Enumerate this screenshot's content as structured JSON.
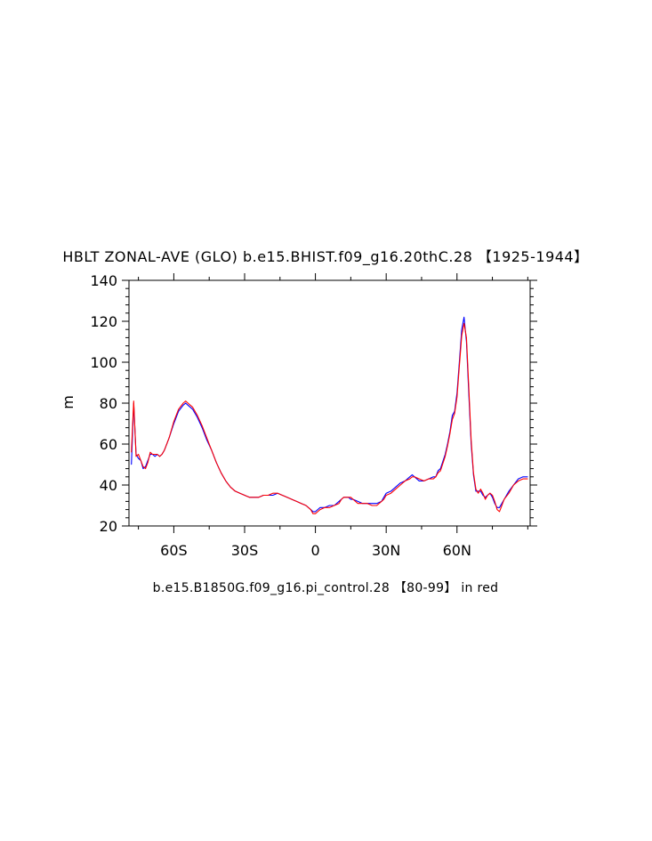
{
  "chart_data": {
    "type": "line",
    "title": "HBLT ZONAL-AVE (GLO) b.e15.BHIST.f09_g16.20thC.28 【1925-1944】",
    "subtitle": "b.e15.B1850G.f09_g16.pi_control.28 【80-99】 in red",
    "xlabel": "",
    "ylabel": "m",
    "xlim": [
      -79,
      91
    ],
    "ylim": [
      20,
      140
    ],
    "x_ticks": [
      {
        "value": -60,
        "label": "60S"
      },
      {
        "value": -30,
        "label": "30S"
      },
      {
        "value": 0,
        "label": "0"
      },
      {
        "value": 30,
        "label": "30N"
      },
      {
        "value": 60,
        "label": "60N"
      }
    ],
    "y_ticks": [
      {
        "value": 20,
        "label": "20"
      },
      {
        "value": 40,
        "label": "40"
      },
      {
        "value": 60,
        "label": "60"
      },
      {
        "value": 80,
        "label": "80"
      },
      {
        "value": 100,
        "label": "100"
      },
      {
        "value": 120,
        "label": "120"
      },
      {
        "value": 140,
        "label": "140"
      }
    ],
    "grid": false,
    "legend": "none",
    "series": [
      {
        "color": "#0000ff",
        "points": [
          [
            -78,
            50
          ],
          [
            -77,
            80
          ],
          [
            -76,
            55
          ],
          [
            -75,
            53
          ],
          [
            -74,
            52
          ],
          [
            -73,
            48
          ],
          [
            -72,
            49
          ],
          [
            -71,
            52
          ],
          [
            -70,
            55
          ],
          [
            -69,
            55
          ],
          [
            -68,
            54
          ],
          [
            -67,
            55
          ],
          [
            -66,
            54
          ],
          [
            -65,
            55
          ],
          [
            -64,
            57
          ],
          [
            -62,
            63
          ],
          [
            -60,
            70
          ],
          [
            -58,
            76
          ],
          [
            -56,
            79
          ],
          [
            -55,
            80
          ],
          [
            -54,
            79
          ],
          [
            -52,
            77
          ],
          [
            -50,
            73
          ],
          [
            -48,
            68
          ],
          [
            -46,
            62
          ],
          [
            -44,
            57
          ],
          [
            -42,
            51
          ],
          [
            -40,
            46
          ],
          [
            -38,
            42
          ],
          [
            -36,
            39
          ],
          [
            -34,
            37
          ],
          [
            -32,
            36
          ],
          [
            -30,
            35
          ],
          [
            -28,
            34
          ],
          [
            -26,
            34
          ],
          [
            -24,
            34
          ],
          [
            -22,
            35
          ],
          [
            -20,
            35
          ],
          [
            -18,
            35
          ],
          [
            -16,
            36
          ],
          [
            -14,
            35
          ],
          [
            -12,
            34
          ],
          [
            -10,
            33
          ],
          [
            -8,
            32
          ],
          [
            -6,
            31
          ],
          [
            -4,
            30
          ],
          [
            -2,
            28
          ],
          [
            -1,
            27
          ],
          [
            0,
            27
          ],
          [
            1,
            28
          ],
          [
            2,
            29
          ],
          [
            4,
            29
          ],
          [
            6,
            30
          ],
          [
            8,
            30
          ],
          [
            10,
            32
          ],
          [
            11,
            33
          ],
          [
            12,
            34
          ],
          [
            14,
            34
          ],
          [
            15,
            33
          ],
          [
            16,
            33
          ],
          [
            18,
            32
          ],
          [
            20,
            31
          ],
          [
            22,
            31
          ],
          [
            24,
            31
          ],
          [
            26,
            31
          ],
          [
            28,
            32
          ],
          [
            29,
            34
          ],
          [
            30,
            36
          ],
          [
            32,
            37
          ],
          [
            34,
            39
          ],
          [
            36,
            41
          ],
          [
            38,
            42
          ],
          [
            40,
            44
          ],
          [
            41,
            45
          ],
          [
            42,
            44
          ],
          [
            44,
            42
          ],
          [
            46,
            42
          ],
          [
            48,
            43
          ],
          [
            50,
            44
          ],
          [
            51,
            44
          ],
          [
            52,
            47
          ],
          [
            53,
            48
          ],
          [
            55,
            55
          ],
          [
            56,
            60
          ],
          [
            57,
            66
          ],
          [
            58,
            74
          ],
          [
            59,
            76
          ],
          [
            60,
            85
          ],
          [
            61,
            100
          ],
          [
            62,
            116
          ],
          [
            63,
            122
          ],
          [
            64,
            110
          ],
          [
            65,
            85
          ],
          [
            66,
            60
          ],
          [
            67,
            45
          ],
          [
            68,
            37
          ],
          [
            69,
            37
          ],
          [
            70,
            37
          ],
          [
            71,
            35
          ],
          [
            72,
            34
          ],
          [
            73,
            35
          ],
          [
            74,
            36
          ],
          [
            75,
            34
          ],
          [
            76,
            31
          ],
          [
            77,
            29
          ],
          [
            78,
            29
          ],
          [
            79,
            31
          ],
          [
            80,
            33
          ],
          [
            82,
            37
          ],
          [
            84,
            40
          ],
          [
            86,
            43
          ],
          [
            88,
            44
          ],
          [
            90,
            44
          ]
        ]
      },
      {
        "color": "#ff0000",
        "points": [
          [
            -78,
            56
          ],
          [
            -77,
            81
          ],
          [
            -76,
            54
          ],
          [
            -75,
            55
          ],
          [
            -74,
            52
          ],
          [
            -73,
            49
          ],
          [
            -72,
            48
          ],
          [
            -71,
            51
          ],
          [
            -70,
            56
          ],
          [
            -69,
            55
          ],
          [
            -68,
            55
          ],
          [
            -67,
            55
          ],
          [
            -66,
            54
          ],
          [
            -65,
            55
          ],
          [
            -64,
            57
          ],
          [
            -62,
            63
          ],
          [
            -60,
            71
          ],
          [
            -58,
            77
          ],
          [
            -56,
            80
          ],
          [
            -55,
            81
          ],
          [
            -54,
            80
          ],
          [
            -52,
            78
          ],
          [
            -50,
            74
          ],
          [
            -48,
            69
          ],
          [
            -46,
            63
          ],
          [
            -44,
            57
          ],
          [
            -42,
            51
          ],
          [
            -40,
            46
          ],
          [
            -38,
            42
          ],
          [
            -36,
            39
          ],
          [
            -34,
            37
          ],
          [
            -32,
            36
          ],
          [
            -30,
            35
          ],
          [
            -28,
            34
          ],
          [
            -26,
            34
          ],
          [
            -24,
            34
          ],
          [
            -22,
            35
          ],
          [
            -20,
            35
          ],
          [
            -18,
            36
          ],
          [
            -16,
            36
          ],
          [
            -14,
            35
          ],
          [
            -12,
            34
          ],
          [
            -10,
            33
          ],
          [
            -8,
            32
          ],
          [
            -6,
            31
          ],
          [
            -4,
            30
          ],
          [
            -2,
            28
          ],
          [
            -1,
            26
          ],
          [
            0,
            26
          ],
          [
            1,
            27
          ],
          [
            2,
            28
          ],
          [
            4,
            29
          ],
          [
            6,
            29
          ],
          [
            8,
            30
          ],
          [
            10,
            31
          ],
          [
            11,
            33
          ],
          [
            12,
            34
          ],
          [
            14,
            34
          ],
          [
            15,
            34
          ],
          [
            16,
            33
          ],
          [
            18,
            31
          ],
          [
            20,
            31
          ],
          [
            22,
            31
          ],
          [
            24,
            30
          ],
          [
            26,
            30
          ],
          [
            28,
            32
          ],
          [
            29,
            33
          ],
          [
            30,
            35
          ],
          [
            32,
            36
          ],
          [
            34,
            38
          ],
          [
            36,
            40
          ],
          [
            38,
            42
          ],
          [
            40,
            43
          ],
          [
            41,
            44
          ],
          [
            42,
            44
          ],
          [
            44,
            43
          ],
          [
            46,
            42
          ],
          [
            48,
            43
          ],
          [
            50,
            43
          ],
          [
            51,
            44
          ],
          [
            52,
            46
          ],
          [
            53,
            47
          ],
          [
            55,
            54
          ],
          [
            56,
            59
          ],
          [
            57,
            65
          ],
          [
            58,
            72
          ],
          [
            59,
            75
          ],
          [
            60,
            83
          ],
          [
            61,
            98
          ],
          [
            62,
            113
          ],
          [
            63,
            119
          ],
          [
            64,
            112
          ],
          [
            65,
            88
          ],
          [
            66,
            62
          ],
          [
            67,
            46
          ],
          [
            68,
            38
          ],
          [
            69,
            36
          ],
          [
            70,
            38
          ],
          [
            71,
            36
          ],
          [
            72,
            33
          ],
          [
            73,
            35
          ],
          [
            74,
            36
          ],
          [
            75,
            35
          ],
          [
            76,
            32
          ],
          [
            77,
            28
          ],
          [
            78,
            27
          ],
          [
            79,
            30
          ],
          [
            80,
            33
          ],
          [
            82,
            36
          ],
          [
            84,
            40
          ],
          [
            86,
            42
          ],
          [
            88,
            43
          ],
          [
            90,
            43
          ]
        ]
      }
    ]
  }
}
